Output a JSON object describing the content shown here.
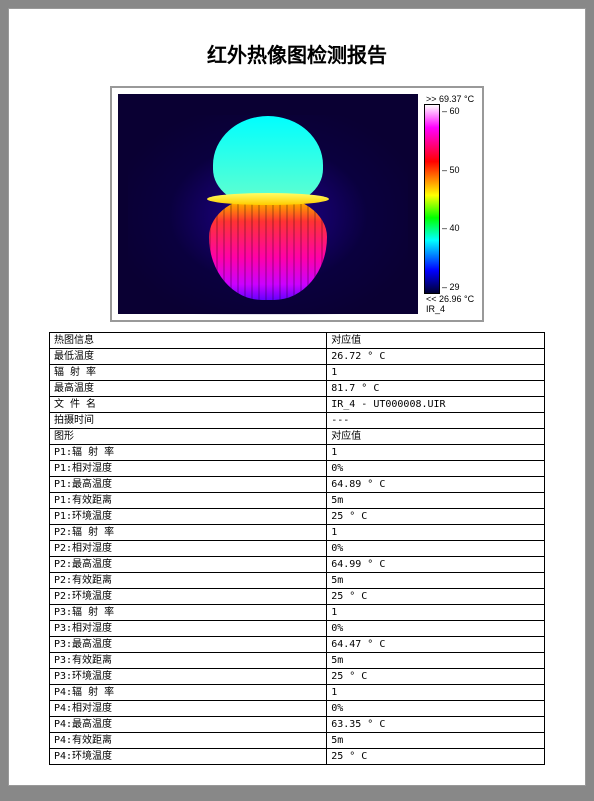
{
  "title": "红外热像图检测报告",
  "thermal": {
    "max_label": ">> 69.37 °C",
    "min_label": "<< 26.96 °C",
    "id_label": "IR_4",
    "ticks": [
      "60",
      "50",
      "40",
      "29"
    ],
    "scale_gradient": "linear-gradient(to bottom, #ffffff 0%, #ff00ff 12%, #ff0000 30%, #ffff00 48%, #00ff00 60%, #00ffff 72%, #0000ff 88%, #000033 100%)",
    "bg_color": "#0a0033",
    "object_bulb_color": "linear-gradient(to bottom, #00ffff 0%, #66ffcc 100%)",
    "object_base_gradient": "linear-gradient(to bottom, #ffff00 0%, #ff9900 10%, #ff3333 25%, #ff00aa 60%, #cc00ff 85%, #6600ff 100%)",
    "glow_color": "radial-gradient(ellipse at center, rgba(40,0,180,0.8) 0%, rgba(10,0,80,0.4) 50%, rgba(10,0,51,0) 80%)"
  },
  "rows": [
    {
      "k": "热图信息",
      "v": "对应值"
    },
    {
      "k": "最低温度",
      "v": "26.72 ° C"
    },
    {
      "k": "辐 射 率",
      "v": "1"
    },
    {
      "k": "最高温度",
      "v": "81.7 ° C"
    },
    {
      "k": "文 件 名",
      "v": "IR_4 - UT000008.UIR"
    },
    {
      "k": "拍摄时间",
      "v": "---"
    },
    {
      "k": "图形",
      "v": "对应值"
    },
    {
      "k": "P1:辐 射 率",
      "v": "1"
    },
    {
      "k": "P1:相对湿度",
      "v": "0%"
    },
    {
      "k": "P1:最高温度",
      "v": "64.89 ° C"
    },
    {
      "k": "P1:有效距离",
      "v": "5m"
    },
    {
      "k": "P1:环境温度",
      "v": "25 ° C"
    },
    {
      "k": "P2:辐 射 率",
      "v": "1"
    },
    {
      "k": "P2:相对湿度",
      "v": "0%"
    },
    {
      "k": "P2:最高温度",
      "v": "64.99 ° C"
    },
    {
      "k": "P2:有效距离",
      "v": "5m"
    },
    {
      "k": "P2:环境温度",
      "v": "25 ° C"
    },
    {
      "k": "P3:辐 射 率",
      "v": "1"
    },
    {
      "k": "P3:相对湿度",
      "v": "0%"
    },
    {
      "k": "P3:最高温度",
      "v": "64.47 ° C"
    },
    {
      "k": "P3:有效距离",
      "v": "5m"
    },
    {
      "k": "P3:环境温度",
      "v": "25 ° C"
    },
    {
      "k": "P4:辐 射 率",
      "v": "1"
    },
    {
      "k": "P4:相对湿度",
      "v": "0%"
    },
    {
      "k": "P4:最高温度",
      "v": "63.35 ° C"
    },
    {
      "k": "P4:有效距离",
      "v": "5m"
    },
    {
      "k": "P4:环境温度",
      "v": "25 ° C"
    }
  ]
}
